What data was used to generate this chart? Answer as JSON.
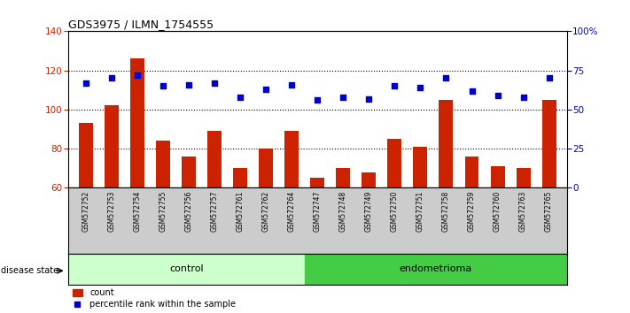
{
  "title": "GDS3975 / ILMN_1754555",
  "samples": [
    "GSM572752",
    "GSM572753",
    "GSM572754",
    "GSM572755",
    "GSM572756",
    "GSM572757",
    "GSM572761",
    "GSM572762",
    "GSM572764",
    "GSM572747",
    "GSM572748",
    "GSM572749",
    "GSM572750",
    "GSM572751",
    "GSM572758",
    "GSM572759",
    "GSM572760",
    "GSM572763",
    "GSM572765"
  ],
  "counts": [
    93,
    102,
    126,
    84,
    76,
    89,
    70,
    80,
    89,
    65,
    70,
    68,
    85,
    81,
    105,
    76,
    71,
    70,
    105
  ],
  "percentiles": [
    67,
    70,
    72,
    65,
    66,
    67,
    58,
    63,
    66,
    56,
    58,
    57,
    65,
    64,
    70,
    62,
    59,
    58,
    70
  ],
  "control_count": 9,
  "endometrioma_count": 10,
  "ylim_left": [
    60,
    140
  ],
  "ylim_right": [
    0,
    100
  ],
  "yticks_left": [
    60,
    80,
    100,
    120,
    140
  ],
  "yticks_right": [
    0,
    25,
    50,
    75,
    100
  ],
  "ytick_labels_right": [
    "0",
    "25",
    "50",
    "75",
    "100%"
  ],
  "bar_color": "#cc2200",
  "dot_color": "#0000cc",
  "control_color": "#ccffcc",
  "endometrioma_color": "#44cc44",
  "background_color": "#ffffff",
  "label_band_color": "#cccccc",
  "disease_state_label": "disease state",
  "control_label": "control",
  "endometrioma_label": "endometrioma",
  "legend_count": "count",
  "legend_percentile": "percentile rank within the sample"
}
